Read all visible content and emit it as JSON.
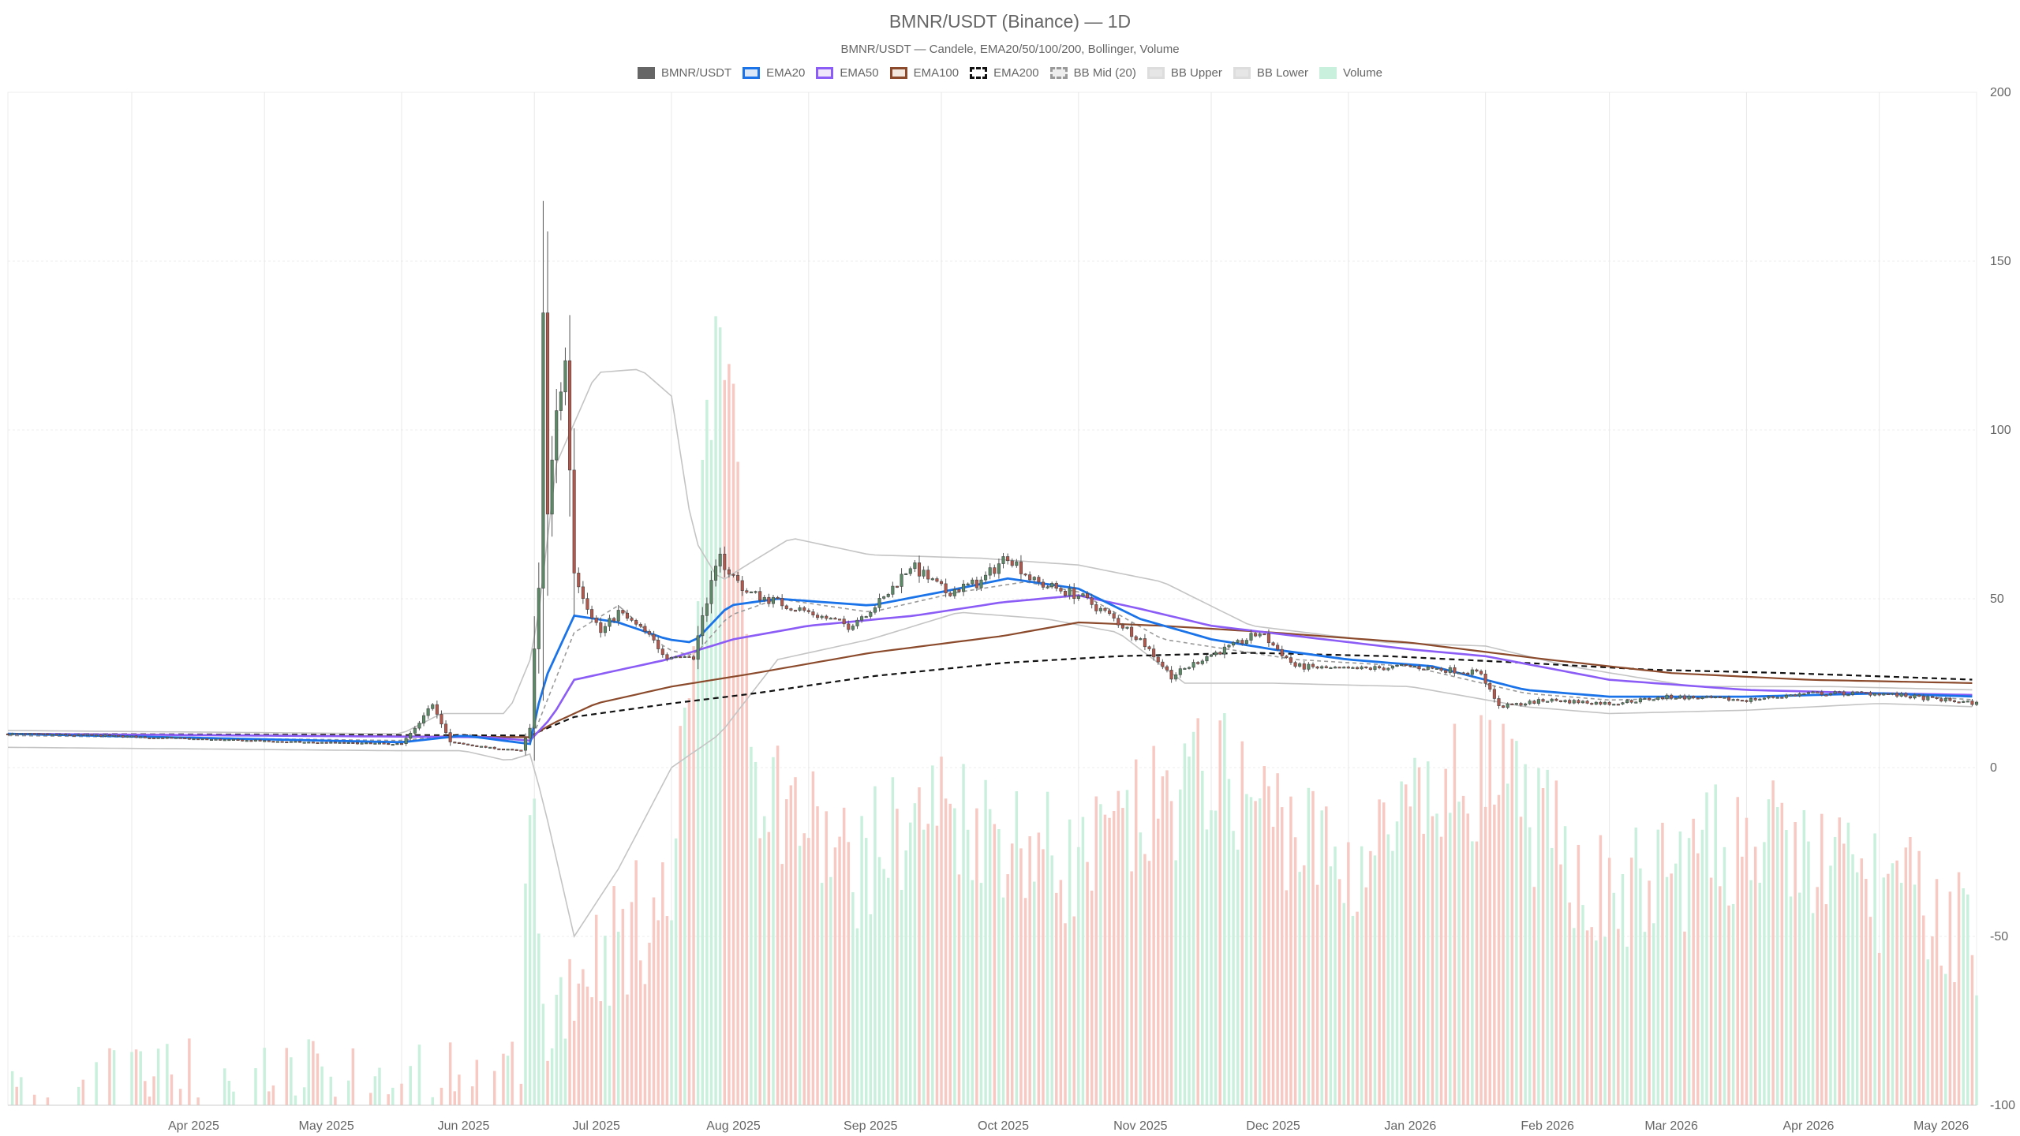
{
  "chart_data": {
    "type": "candlestick",
    "title": "BMNR/USDT (Binance) — 1D",
    "subtitle": "BMNR/USDT — Candele, EMA20/50/100/200, Bollinger, Volume",
    "legend": [
      {
        "name": "BMNR/USDT",
        "fill": "#666666",
        "stroke": "#666666",
        "dash": false
      },
      {
        "name": "EMA20",
        "fill": "#dbe8f8",
        "stroke": "#1a73e8",
        "dash": false
      },
      {
        "name": "EMA50",
        "fill": "#efe6fb",
        "stroke": "#8b5cf6",
        "dash": false
      },
      {
        "name": "EMA100",
        "fill": "#f3e9e1",
        "stroke": "#8b4a2b",
        "dash": false
      },
      {
        "name": "EMA200",
        "fill": "#ffffff",
        "stroke": "#111111",
        "dash": true
      },
      {
        "name": "BB Mid (20)",
        "fill": "#eeeeee",
        "stroke": "#999999",
        "dash": true
      },
      {
        "name": "BB Upper",
        "fill": "#e6e6e6",
        "stroke": "#dddddd",
        "dash": false
      },
      {
        "name": "BB Lower",
        "fill": "#e6e6e6",
        "stroke": "#dddddd",
        "dash": false
      },
      {
        "name": "Volume",
        "fill": "#c9f0dc",
        "stroke": "#c9f0dc",
        "dash": false
      }
    ],
    "x_ticks": [
      "Apr 2025",
      "May 2025",
      "Jun 2025",
      "Jul 2025",
      "Aug 2025",
      "Sep 2025",
      "Oct 2025",
      "Nov 2025",
      "Dec 2025",
      "Jan 2026",
      "Feb 2026",
      "Mar 2026",
      "Apr 2026",
      "May 2026"
    ],
    "y_ticks": [
      200,
      150,
      100,
      50,
      0,
      -50,
      -100
    ],
    "ylim": [
      -100,
      200
    ],
    "x_range": [
      "2025-03-04",
      "2026-05-23"
    ],
    "grid": true,
    "colors": {
      "up": "#5b8a67",
      "down": "#b5574a",
      "volume_up": "#c9f0dc",
      "volume_down": "#f7c9c2",
      "ema20": "#1a73e8",
      "ema50": "#8b5cf6",
      "ema100": "#8b4a2b",
      "ema200": "#111111",
      "bb": "#c4c4c4",
      "bb_mid": "#9a9a9a"
    },
    "price_path": [
      [
        "2025-03-04",
        10
      ],
      [
        "2025-03-25",
        9.5
      ],
      [
        "2025-04-15",
        8.5
      ],
      [
        "2025-05-10",
        7.5
      ],
      [
        "2025-06-01",
        7
      ],
      [
        "2025-06-05",
        13
      ],
      [
        "2025-06-08",
        19
      ],
      [
        "2025-06-12",
        7.5
      ],
      [
        "2025-06-20",
        6
      ],
      [
        "2025-06-28",
        5
      ],
      [
        "2025-06-30",
        12
      ],
      [
        "2025-07-01",
        35
      ],
      [
        "2025-07-02",
        52
      ],
      [
        "2025-07-03",
        135
      ],
      [
        "2025-07-04",
        75
      ],
      [
        "2025-07-06",
        105
      ],
      [
        "2025-07-08",
        120
      ],
      [
        "2025-07-10",
        58
      ],
      [
        "2025-07-13",
        48
      ],
      [
        "2025-07-16",
        40
      ],
      [
        "2025-07-20",
        46
      ],
      [
        "2025-07-26",
        40
      ],
      [
        "2025-07-31",
        33
      ],
      [
        "2025-08-06",
        33
      ],
      [
        "2025-08-09",
        50
      ],
      [
        "2025-08-12",
        62
      ],
      [
        "2025-08-14",
        58
      ],
      [
        "2025-08-18",
        52
      ],
      [
        "2025-08-25",
        49
      ],
      [
        "2025-09-01",
        46
      ],
      [
        "2025-09-10",
        42
      ],
      [
        "2025-09-18",
        50
      ],
      [
        "2025-09-24",
        60
      ],
      [
        "2025-10-02",
        52
      ],
      [
        "2025-10-10",
        55
      ],
      [
        "2025-10-16",
        63
      ],
      [
        "2025-10-22",
        55
      ],
      [
        "2025-11-01",
        51
      ],
      [
        "2025-11-08",
        45
      ],
      [
        "2025-11-15",
        38
      ],
      [
        "2025-11-22",
        27
      ],
      [
        "2025-11-30",
        33
      ],
      [
        "2025-12-06",
        36
      ],
      [
        "2025-12-12",
        40
      ],
      [
        "2025-12-20",
        30
      ],
      [
        "2026-01-01",
        29
      ],
      [
        "2026-01-15",
        30
      ],
      [
        "2026-01-31",
        28
      ],
      [
        "2026-02-04",
        18
      ],
      [
        "2026-02-15",
        20
      ],
      [
        "2026-03-01",
        19
      ],
      [
        "2026-03-15",
        21
      ],
      [
        "2026-04-01",
        20
      ],
      [
        "2026-04-15",
        22
      ],
      [
        "2026-05-01",
        22
      ],
      [
        "2026-05-23",
        19
      ]
    ],
    "volume_path": [
      [
        "2025-03-04",
        -100
      ],
      [
        "2025-06-28",
        -100
      ],
      [
        "2025-06-30",
        5
      ],
      [
        "2025-07-03",
        -80
      ],
      [
        "2025-07-06",
        -70
      ],
      [
        "2025-07-10",
        -60
      ],
      [
        "2025-07-20",
        -50
      ],
      [
        "2025-08-01",
        -40
      ],
      [
        "2025-08-12",
        150
      ],
      [
        "2025-08-20",
        0
      ],
      [
        "2025-09-10",
        -30
      ],
      [
        "2025-10-01",
        -10
      ],
      [
        "2025-11-01",
        -30
      ],
      [
        "2025-12-01",
        0
      ],
      [
        "2026-01-01",
        -30
      ],
      [
        "2026-02-01",
        0
      ],
      [
        "2026-03-01",
        -40
      ],
      [
        "2026-04-01",
        -20
      ],
      [
        "2026-05-01",
        -35
      ],
      [
        "2026-05-23",
        -50
      ]
    ],
    "ema20": [
      [
        "2025-03-04",
        10
      ],
      [
        "2025-06-01",
        7.5
      ],
      [
        "2025-06-15",
        9.5
      ],
      [
        "2025-06-30",
        7
      ],
      [
        "2025-07-03",
        25
      ],
      [
        "2025-07-10",
        45
      ],
      [
        "2025-07-20",
        43
      ],
      [
        "2025-07-31",
        38
      ],
      [
        "2025-08-06",
        37
      ],
      [
        "2025-08-14",
        48
      ],
      [
        "2025-08-25",
        50
      ],
      [
        "2025-09-15",
        48
      ],
      [
        "2025-10-01",
        52
      ],
      [
        "2025-10-16",
        56
      ],
      [
        "2025-11-01",
        53
      ],
      [
        "2025-11-15",
        44
      ],
      [
        "2025-12-01",
        38
      ],
      [
        "2025-12-15",
        35
      ],
      [
        "2026-01-01",
        32
      ],
      [
        "2026-01-20",
        30
      ],
      [
        "2026-02-10",
        23
      ],
      [
        "2026-03-01",
        21
      ],
      [
        "2026-04-01",
        21
      ],
      [
        "2026-05-01",
        22
      ],
      [
        "2026-05-23",
        21
      ]
    ],
    "ema50": [
      [
        "2025-03-04",
        10
      ],
      [
        "2025-06-20",
        9
      ],
      [
        "2025-06-30",
        8
      ],
      [
        "2025-07-05",
        15
      ],
      [
        "2025-07-10",
        26
      ],
      [
        "2025-07-31",
        32
      ],
      [
        "2025-08-15",
        38
      ],
      [
        "2025-09-01",
        42
      ],
      [
        "2025-09-25",
        45
      ],
      [
        "2025-10-15",
        49
      ],
      [
        "2025-11-01",
        51
      ],
      [
        "2025-11-15",
        47
      ],
      [
        "2025-12-01",
        42
      ],
      [
        "2025-12-20",
        39
      ],
      [
        "2026-01-15",
        35
      ],
      [
        "2026-02-01",
        33
      ],
      [
        "2026-03-01",
        26
      ],
      [
        "2026-04-01",
        23
      ],
      [
        "2026-05-01",
        22
      ],
      [
        "2026-05-23",
        21.5
      ]
    ],
    "ema100": [
      [
        "2025-03-04",
        10
      ],
      [
        "2025-06-30",
        9
      ],
      [
        "2025-07-05",
        13
      ],
      [
        "2025-07-15",
        19
      ],
      [
        "2025-08-01",
        24
      ],
      [
        "2025-08-20",
        28
      ],
      [
        "2025-09-15",
        34
      ],
      [
        "2025-10-15",
        39
      ],
      [
        "2025-11-01",
        43
      ],
      [
        "2025-11-20",
        42
      ],
      [
        "2025-12-15",
        40
      ],
      [
        "2026-01-15",
        37
      ],
      [
        "2026-02-15",
        32
      ],
      [
        "2026-03-15",
        28
      ],
      [
        "2026-04-15",
        26
      ],
      [
        "2026-05-23",
        25
      ]
    ],
    "ema200": [
      [
        "2025-03-04",
        10
      ],
      [
        "2025-06-30",
        9.5
      ],
      [
        "2025-07-10",
        15
      ],
      [
        "2025-08-01",
        19
      ],
      [
        "2025-08-20",
        22
      ],
      [
        "2025-09-15",
        27
      ],
      [
        "2025-10-15",
        31
      ],
      [
        "2025-11-10",
        33
      ],
      [
        "2025-12-10",
        34
      ],
      [
        "2026-01-10",
        33
      ],
      [
        "2026-02-10",
        31
      ],
      [
        "2026-03-10",
        29
      ],
      [
        "2026-04-10",
        28
      ],
      [
        "2026-05-23",
        26
      ]
    ],
    "bb_mid": [
      [
        "2025-03-04",
        9.5
      ],
      [
        "2025-06-01",
        8
      ],
      [
        "2025-06-15",
        10
      ],
      [
        "2025-06-30",
        7
      ],
      [
        "2025-07-10",
        40
      ],
      [
        "2025-07-20",
        48
      ],
      [
        "2025-07-31",
        35
      ],
      [
        "2025-08-06",
        33
      ],
      [
        "2025-08-14",
        45
      ],
      [
        "2025-08-25",
        50
      ],
      [
        "2025-09-15",
        46
      ],
      [
        "2025-10-05",
        52
      ],
      [
        "2025-10-20",
        55
      ],
      [
        "2025-11-01",
        52
      ],
      [
        "2025-11-20",
        38
      ],
      [
        "2025-12-05",
        35
      ],
      [
        "2025-12-20",
        32
      ],
      [
        "2026-01-15",
        30
      ],
      [
        "2026-02-10",
        22
      ],
      [
        "2026-03-01",
        20
      ],
      [
        "2026-04-01",
        21
      ],
      [
        "2026-05-01",
        22
      ],
      [
        "2026-05-23",
        20
      ]
    ],
    "bb_upper": [
      [
        "2025-03-04",
        11
      ],
      [
        "2025-06-01",
        10
      ],
      [
        "2025-06-10",
        16
      ],
      [
        "2025-06-25",
        16
      ],
      [
        "2025-07-01",
        35
      ],
      [
        "2025-07-06",
        90
      ],
      [
        "2025-07-15",
        117
      ],
      [
        "2025-07-25",
        118
      ],
      [
        "2025-08-01",
        110
      ],
      [
        "2025-08-06",
        68
      ],
      [
        "2025-08-12",
        55
      ],
      [
        "2025-08-18",
        60
      ],
      [
        "2025-08-28",
        68
      ],
      [
        "2025-09-15",
        63
      ],
      [
        "2025-10-10",
        62
      ],
      [
        "2025-11-01",
        60
      ],
      [
        "2025-11-20",
        55
      ],
      [
        "2025-12-10",
        42
      ],
      [
        "2026-01-10",
        37
      ],
      [
        "2026-02-01",
        36
      ],
      [
        "2026-02-20",
        30
      ],
      [
        "2026-03-20",
        24
      ],
      [
        "2026-04-20",
        24
      ],
      [
        "2026-05-23",
        23
      ]
    ],
    "bb_lower": [
      [
        "2025-03-04",
        6
      ],
      [
        "2025-06-01",
        5
      ],
      [
        "2025-06-15",
        5
      ],
      [
        "2025-06-25",
        2
      ],
      [
        "2025-06-30",
        4
      ],
      [
        "2025-07-03",
        -10
      ],
      [
        "2025-07-10",
        -50
      ],
      [
        "2025-07-20",
        -30
      ],
      [
        "2025-08-01",
        0
      ],
      [
        "2025-08-12",
        10
      ],
      [
        "2025-08-25",
        32
      ],
      [
        "2025-09-15",
        38
      ],
      [
        "2025-10-05",
        46
      ],
      [
        "2025-10-25",
        44
      ],
      [
        "2025-11-10",
        40
      ],
      [
        "2025-11-25",
        25
      ],
      [
        "2025-12-15",
        25
      ],
      [
        "2026-01-15",
        24
      ],
      [
        "2026-02-10",
        18
      ],
      [
        "2026-03-01",
        16
      ],
      [
        "2026-04-01",
        17
      ],
      [
        "2026-05-01",
        19
      ],
      [
        "2026-05-23",
        18
      ]
    ]
  }
}
